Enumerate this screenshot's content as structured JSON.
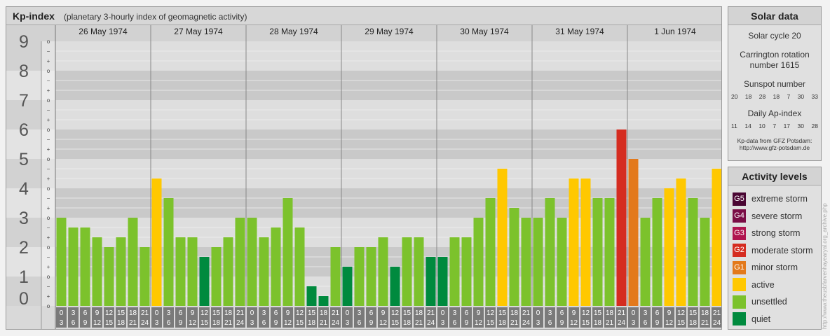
{
  "header": {
    "title": "Kp-index",
    "subtitle": "(planetary 3-hourly index of geomagnetic activity)"
  },
  "chart_data": {
    "type": "bar",
    "title": "Kp-index",
    "subtitle": "(planetary 3-hourly index of geomagnetic activity)",
    "ylim": [
      0,
      9
    ],
    "y_ticks": [
      "0",
      "1",
      "2",
      "3",
      "4",
      "5",
      "6",
      "7",
      "8",
      "9"
    ],
    "minor_tick_labels": [
      "o",
      "+",
      "−"
    ],
    "days": [
      "26 May 1974",
      "27 May 1974",
      "28 May 1974",
      "29 May 1974",
      "30 May 1974",
      "31 May 1974",
      "1 Jun 1974"
    ],
    "interval_labels": [
      [
        "0",
        "3"
      ],
      [
        "3",
        "6"
      ],
      [
        "6",
        "9"
      ],
      [
        "9",
        "12"
      ],
      [
        "12",
        "15"
      ],
      [
        "15",
        "18"
      ],
      [
        "18",
        "21"
      ],
      [
        "21",
        "24"
      ]
    ],
    "values": [
      [
        3.0,
        2.667,
        2.667,
        2.333,
        2.0,
        2.333,
        3.0,
        2.0
      ],
      [
        4.333,
        3.667,
        2.333,
        2.333,
        1.667,
        2.0,
        2.333,
        3.0
      ],
      [
        3.0,
        2.333,
        2.667,
        3.667,
        2.667,
        0.667,
        0.333,
        2.0
      ],
      [
        1.333,
        2.0,
        2.0,
        2.333,
        1.333,
        2.333,
        2.333,
        1.667
      ],
      [
        1.667,
        2.333,
        2.333,
        3.0,
        3.667,
        4.667,
        3.333,
        3.0
      ],
      [
        3.0,
        3.667,
        3.0,
        4.333,
        4.333,
        3.667,
        3.667,
        6.0
      ],
      [
        5.0,
        3.0,
        3.667,
        4.0,
        4.333,
        3.667,
        3.0,
        4.667
      ]
    ],
    "grid": true,
    "level_colors": {
      "quiet": "#008a3e",
      "unsettled": "#7cc22c",
      "active": "#ffc800",
      "G1": "#e3791b",
      "G2": "#d52c20",
      "G3": "#b0144f",
      "G4": "#7a0c45",
      "G5": "#4a0633"
    }
  },
  "solar": {
    "title": "Solar data",
    "cycle": "Solar cycle 20",
    "carrington_line1": "Carrington rotation",
    "carrington_line2": "number 1615",
    "sunspot_label": "Sunspot number",
    "sunspot_values": [
      "20",
      "18",
      "28",
      "18",
      "7",
      "30",
      "33"
    ],
    "ap_label": "Daily Ap-index",
    "ap_values": [
      "11",
      "14",
      "10",
      "7",
      "17",
      "30",
      "28"
    ],
    "credit_line1": "Kp-data from GFZ Potsdam:",
    "credit_line2": "http://www.gfz-potsdam.de"
  },
  "activity": {
    "title": "Activity levels",
    "items": [
      {
        "code": "G5",
        "label": "extreme storm",
        "color": "#4a0633"
      },
      {
        "code": "G4",
        "label": "severe storm",
        "color": "#7a0c45"
      },
      {
        "code": "G3",
        "label": "strong storm",
        "color": "#b0144f"
      },
      {
        "code": "G2",
        "label": "moderate storm",
        "color": "#d52c20"
      },
      {
        "code": "G1",
        "label": "minor storm",
        "color": "#e3791b"
      },
      {
        "code": "",
        "label": "active",
        "color": "#ffc800"
      },
      {
        "code": "",
        "label": "unsettled",
        "color": "#7cc22c"
      },
      {
        "code": "",
        "label": "quiet",
        "color": "#008a3e"
      }
    ]
  },
  "watermark": "http://www.theusbfarvenhayearyal.org_archive.php"
}
